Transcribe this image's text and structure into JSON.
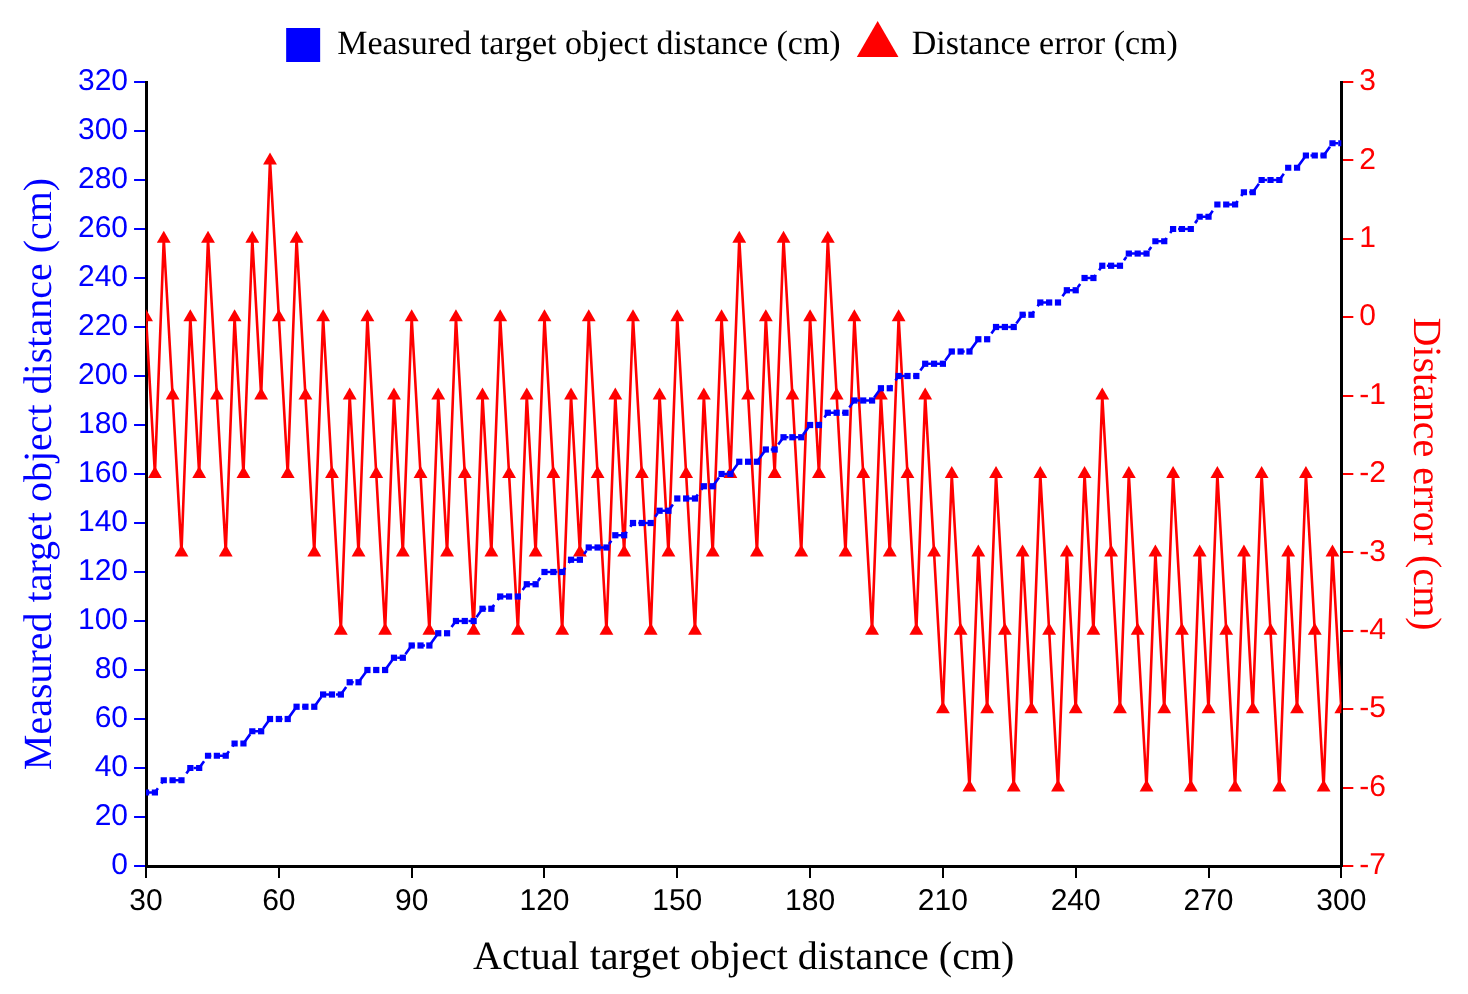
{
  "chart_data": {
    "type": "line",
    "xlabel": "Actual target object distance (cm)",
    "ylabel": "Measured target object distance (cm)",
    "y2label": "Distance error (cm)",
    "x": [
      30,
      32,
      34,
      36,
      38,
      40,
      42,
      44,
      46,
      48,
      50,
      52,
      54,
      56,
      58,
      60,
      62,
      64,
      66,
      68,
      70,
      72,
      74,
      76,
      78,
      80,
      82,
      84,
      86,
      88,
      90,
      92,
      94,
      96,
      98,
      100,
      102,
      104,
      106,
      108,
      110,
      112,
      114,
      116,
      118,
      120,
      122,
      124,
      126,
      128,
      130,
      132,
      134,
      136,
      138,
      140,
      142,
      144,
      146,
      148,
      150,
      152,
      154,
      156,
      158,
      160,
      162,
      164,
      166,
      168,
      170,
      172,
      174,
      176,
      178,
      180,
      182,
      184,
      186,
      188,
      190,
      192,
      194,
      196,
      198,
      200,
      202,
      204,
      206,
      208,
      210,
      212,
      214,
      216,
      218,
      220,
      222,
      224,
      226,
      228,
      230,
      232,
      234,
      236,
      238,
      240,
      242,
      244,
      246,
      248,
      250,
      252,
      254,
      256,
      258,
      260,
      262,
      264,
      266,
      268,
      270,
      272,
      274,
      276,
      278,
      280,
      282,
      284,
      286,
      288,
      290,
      292,
      294,
      296,
      298,
      300
    ],
    "series": [
      {
        "name": "Measured target object distance (cm)",
        "color": "#0000ff",
        "marker": "square",
        "line_style": "dashed",
        "values": [
          30,
          30,
          35,
          35,
          35,
          40,
          40,
          45,
          45,
          45,
          50,
          50,
          55,
          55,
          60,
          60,
          60,
          65,
          65,
          65,
          70,
          70,
          70,
          75,
          75,
          80,
          80,
          80,
          85,
          85,
          90,
          90,
          90,
          95,
          95,
          100,
          100,
          100,
          105,
          105,
          110,
          110,
          110,
          115,
          115,
          120,
          120,
          120,
          125,
          125,
          130,
          130,
          130,
          135,
          135,
          140,
          140,
          140,
          145,
          145,
          150,
          150,
          150,
          155,
          155,
          160,
          160,
          165,
          165,
          165,
          170,
          170,
          175,
          175,
          175,
          180,
          180,
          185,
          185,
          185,
          190,
          190,
          190,
          195,
          195,
          200,
          200,
          200,
          205,
          205,
          205,
          210,
          210,
          210,
          215,
          215,
          220,
          220,
          220,
          225,
          225,
          230,
          230,
          230,
          235,
          235,
          240,
          240,
          245,
          245,
          245,
          250,
          250,
          250,
          255,
          255,
          260,
          260,
          260,
          265,
          265,
          270,
          270,
          270,
          275,
          275,
          280,
          280,
          280,
          285,
          285,
          290,
          290,
          290,
          295,
          295
        ]
      },
      {
        "name": "Distance error (cm)",
        "color": "#ff0000",
        "marker": "triangle",
        "line_style": "solid",
        "axis": "y2",
        "values": [
          0,
          -2,
          1,
          -1,
          -3,
          0,
          -2,
          1,
          -1,
          -3,
          0,
          -2,
          1,
          -1,
          2,
          0,
          -2,
          1,
          -1,
          -3,
          0,
          -2,
          -4,
          -1,
          -3,
          0,
          -2,
          -4,
          -1,
          -3,
          0,
          -2,
          -4,
          -1,
          -3,
          0,
          -2,
          -4,
          -1,
          -3,
          0,
          -2,
          -4,
          -1,
          -3,
          0,
          -2,
          -4,
          -1,
          -3,
          0,
          -2,
          -4,
          -1,
          -3,
          0,
          -2,
          -4,
          -1,
          -3,
          0,
          -2,
          -4,
          -1,
          -3,
          0,
          -2,
          1,
          -1,
          -3,
          0,
          -2,
          1,
          -1,
          -3,
          0,
          -2,
          1,
          -1,
          -3,
          0,
          -2,
          -4,
          -1,
          -3,
          0,
          -2,
          -4,
          -1,
          -3,
          -5,
          -2,
          -4,
          -6,
          -3,
          -5,
          -2,
          -4,
          -6,
          -3,
          -5,
          -2,
          -4,
          -6,
          -3,
          -5,
          -2,
          -4,
          -1,
          -3,
          -5,
          -2,
          -4,
          -6,
          -3,
          -5,
          -2,
          -4,
          -6,
          -3,
          -5,
          -2,
          -4,
          -6,
          -3,
          -5,
          -2,
          -4,
          -6,
          -3,
          -5,
          -2,
          -4,
          -6,
          -3,
          -5
        ]
      }
    ],
    "xlim": [
      30,
      300
    ],
    "xticks": [
      30,
      60,
      90,
      120,
      150,
      180,
      210,
      240,
      270,
      300
    ],
    "ylim": [
      0,
      320
    ],
    "yticks": [
      0,
      20,
      40,
      60,
      80,
      100,
      120,
      140,
      160,
      180,
      200,
      220,
      240,
      260,
      280,
      300,
      320
    ],
    "y2lim": [
      -7,
      3
    ],
    "y2ticks": [
      -7,
      -6,
      -5,
      -4,
      -3,
      -2,
      -1,
      0,
      1,
      2,
      3
    ],
    "grid": false,
    "legend": "top"
  }
}
